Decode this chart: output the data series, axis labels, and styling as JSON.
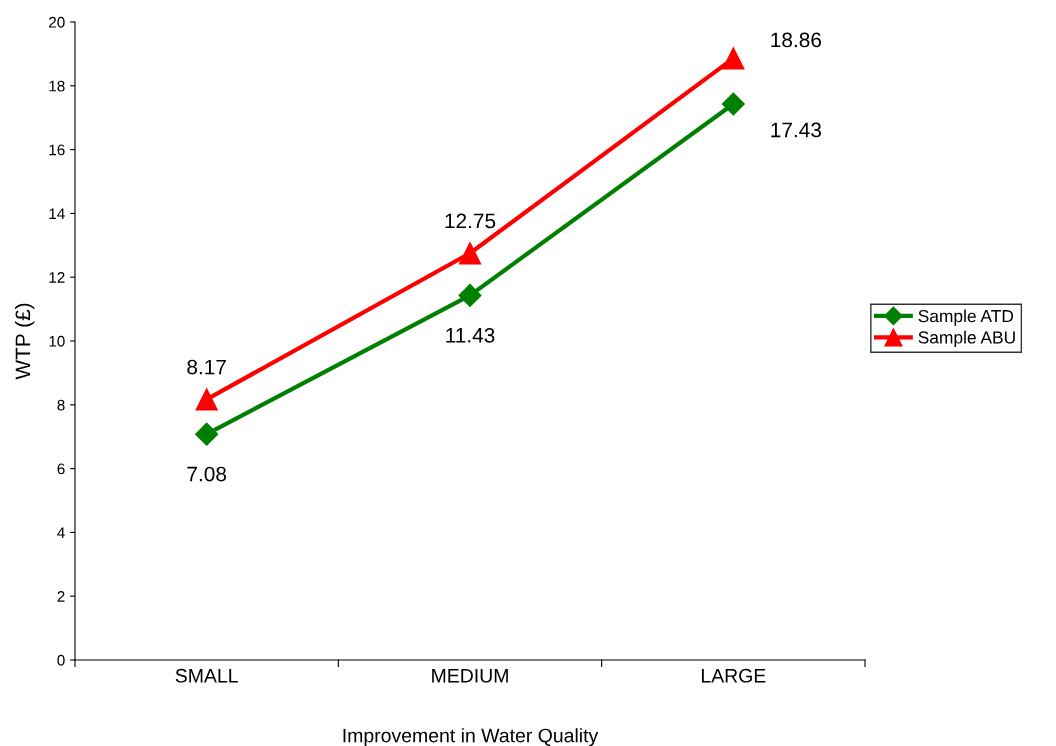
{
  "chart_data": {
    "type": "line",
    "xlabel": "Improvement in Water Quality",
    "ylabel": "WTP (£)",
    "categories": [
      "SMALL",
      "MEDIUM",
      "LARGE"
    ],
    "series": [
      {
        "name": "Sample ATD",
        "color": "#008000",
        "marker": "diamond",
        "values": [
          7.08,
          11.43,
          17.43
        ]
      },
      {
        "name": "Sample ABU",
        "color": "#ff0000",
        "marker": "triangle",
        "values": [
          8.17,
          12.75,
          18.86
        ]
      }
    ],
    "ylim": [
      0,
      20
    ],
    "yticks": [
      0,
      2,
      4,
      6,
      8,
      10,
      12,
      14,
      16,
      18,
      20
    ],
    "data_labels": true,
    "grid": false,
    "legend": "right",
    "line_style": "solid"
  }
}
